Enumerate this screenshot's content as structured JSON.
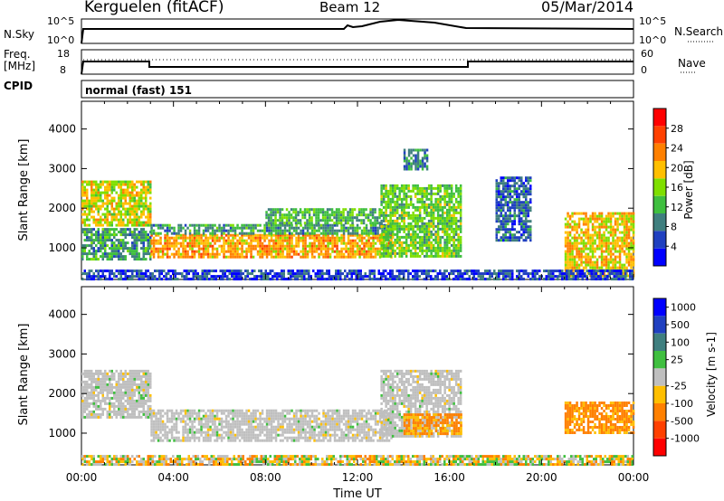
{
  "header": {
    "station": "Kerguelen (fitACF)",
    "beam": "Beam 12",
    "date": "05/Mar/2014"
  },
  "panels": {
    "nsky": {
      "label": "N.Sky",
      "ticks": [
        "10^5",
        "10^0"
      ],
      "right_label": "N.Search",
      "right_ticks": [
        "10^5",
        "10^0"
      ]
    },
    "freq": {
      "label_line1": "Freq.",
      "label_line2": "[MHz]",
      "left_ticks": [
        "18",
        "8"
      ],
      "right_label": "Nave",
      "right_ticks": [
        "60",
        "0"
      ]
    },
    "cpid": {
      "label": "CPID",
      "value": "normal (fast) 151"
    }
  },
  "colors": {
    "power_scale": [
      "#0000ff",
      "#2040c0",
      "#3f7f7f",
      "#3fbf3f",
      "#7fdf00",
      "#ffbf00",
      "#ff8000",
      "#ff4000",
      "#ff0000"
    ],
    "velocity_scale": [
      "#0000ff",
      "#2040c0",
      "#3f7f7f",
      "#3fbf3f",
      "#bfbfbf",
      "#ffbf00",
      "#ff8000",
      "#ff4000",
      "#ff0000"
    ],
    "ground_scatter": "#bfbfbf"
  },
  "chart_data": [
    {
      "type": "heatmap",
      "name": "power",
      "ylabel": "Slant Range [km]",
      "ylim": [
        200,
        4700
      ],
      "yticks": [
        "1000",
        "2000",
        "3000",
        "4000"
      ],
      "xlim": [
        0,
        24
      ],
      "colorbar_label": "Power [dB]",
      "colorbar_ticks": [
        "4",
        "8",
        "12",
        "16",
        "20",
        "24",
        "28"
      ],
      "colorbar_range": [
        0,
        32
      ],
      "regions": [
        {
          "t0": 0.0,
          "t1": 3.0,
          "r0": 1550,
          "r1": 2700,
          "level": 20
        },
        {
          "t0": 0.0,
          "t1": 3.0,
          "r0": 700,
          "r1": 1500,
          "level": 12
        },
        {
          "t0": 3.0,
          "t1": 13.5,
          "r0": 800,
          "r1": 1350,
          "level": 24
        },
        {
          "t0": 3.0,
          "t1": 13.5,
          "r0": 1350,
          "r1": 1600,
          "level": 12
        },
        {
          "t0": 8.0,
          "t1": 13.0,
          "r0": 1600,
          "r1": 2000,
          "level": 14
        },
        {
          "t0": 13.0,
          "t1": 16.5,
          "r0": 800,
          "r1": 2600,
          "level": 16
        },
        {
          "t0": 14.0,
          "t1": 15.0,
          "r0": 3000,
          "r1": 3500,
          "level": 10
        },
        {
          "t0": 18.0,
          "t1": 19.5,
          "r0": 1200,
          "r1": 2800,
          "level": 8
        },
        {
          "t0": 21.0,
          "t1": 24.0,
          "r0": 300,
          "r1": 1900,
          "level": 22
        },
        {
          "t0": 0.0,
          "t1": 24.0,
          "r0": 200,
          "r1": 450,
          "level": 6
        }
      ]
    },
    {
      "type": "heatmap",
      "name": "velocity",
      "ylabel": "Slant Range [km]",
      "xlabel": "Time UT",
      "ylim": [
        200,
        4700
      ],
      "yticks": [
        "1000",
        "2000",
        "3000",
        "4000"
      ],
      "xlim": [
        0,
        24
      ],
      "xticks": [
        "00:00",
        "04:00",
        "08:00",
        "12:00",
        "16:00",
        "20:00",
        "00:00"
      ],
      "colorbar_label": "Velocity [m s-1]",
      "colorbar_ticks": [
        "1000",
        "500",
        "100",
        "25",
        "-25",
        "-100",
        "-500",
        "-1000"
      ],
      "regions": [
        {
          "t0": 0.0,
          "t1": 3.0,
          "r0": 1400,
          "r1": 2600,
          "level": 25
        },
        {
          "t0": 3.0,
          "t1": 13.5,
          "r0": 800,
          "r1": 1600,
          "level": 25
        },
        {
          "t0": 13.0,
          "t1": 16.5,
          "r0": 900,
          "r1": 2600,
          "level": 25
        },
        {
          "t0": 14.0,
          "t1": 16.5,
          "r0": 1000,
          "r1": 1500,
          "level": -100
        },
        {
          "t0": 21.0,
          "t1": 24.0,
          "r0": 1000,
          "r1": 1800,
          "level": -100
        },
        {
          "t0": 0.0,
          "t1": 24.0,
          "r0": 200,
          "r1": 450,
          "level": -50
        }
      ]
    }
  ]
}
